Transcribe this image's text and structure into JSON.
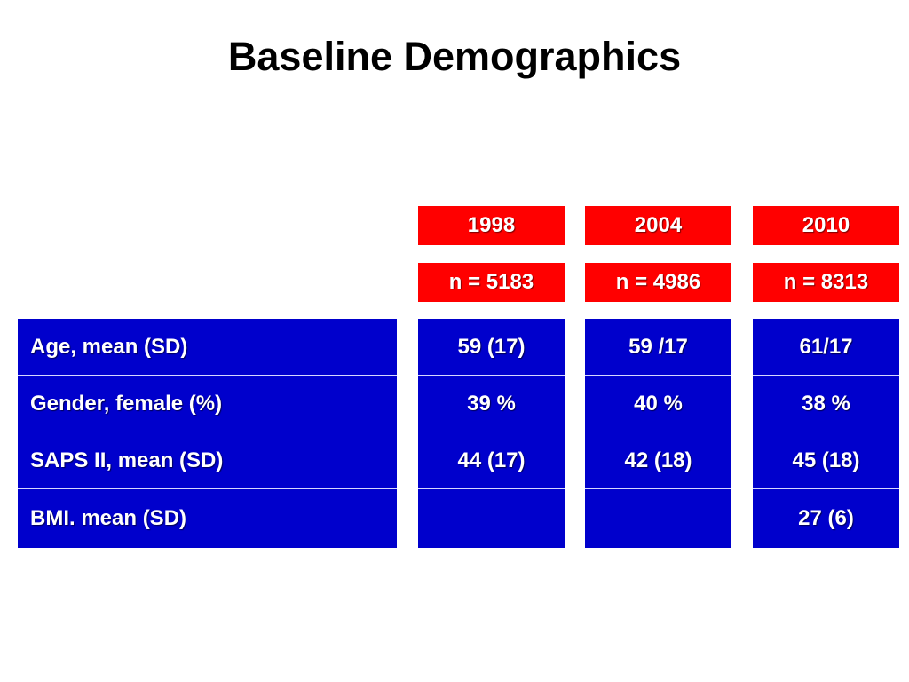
{
  "title": "Baseline Demographics",
  "colors": {
    "header_bg": "#ff0000",
    "cell_bg": "#0000cc",
    "text": "#ffffff"
  },
  "columns": [
    {
      "year": "1998",
      "n": "n = 5183"
    },
    {
      "year": "2004",
      "n": "n = 4986"
    },
    {
      "year": "2010",
      "n": "n = 8313"
    }
  ],
  "rows": [
    {
      "label": "Age, mean (SD)",
      "values": [
        "59 (17)",
        "59 /17",
        "61/17"
      ]
    },
    {
      "label": "Gender, female  (%)",
      "values": [
        "39 %",
        "40 %",
        "38 %"
      ]
    },
    {
      "label": "SAPS II, mean (SD)",
      "values": [
        "44 (17)",
        "42 (18)",
        "45 (18)"
      ]
    },
    {
      "label": "BMI. mean (SD)",
      "values": [
        "",
        "",
        "27 (6)"
      ]
    }
  ]
}
